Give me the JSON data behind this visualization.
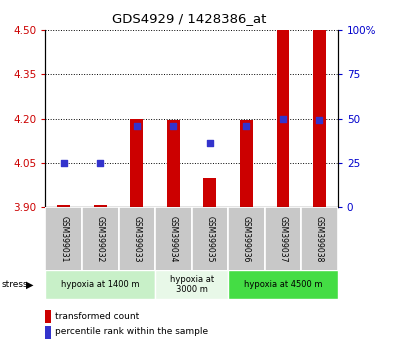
{
  "title": "GDS4929 / 1428386_at",
  "samples": [
    "GSM399031",
    "GSM399032",
    "GSM399033",
    "GSM399034",
    "GSM399035",
    "GSM399036",
    "GSM399037",
    "GSM399038"
  ],
  "bar_bottom": 3.9,
  "bar_tops": [
    3.906,
    3.906,
    4.2,
    4.195,
    4.0,
    4.195,
    4.5,
    4.5
  ],
  "percentile_ranks": [
    25,
    25,
    46,
    46,
    36,
    46,
    50,
    49
  ],
  "ylim_left": [
    3.9,
    4.5
  ],
  "ylim_right": [
    0,
    100
  ],
  "yticks_left": [
    3.9,
    4.05,
    4.2,
    4.35,
    4.5
  ],
  "yticks_right": [
    0,
    25,
    50,
    75,
    100
  ],
  "bar_color": "#cc0000",
  "dot_color": "#3333cc",
  "bar_width": 0.35,
  "groups": [
    {
      "label": "hypoxia at 1400 m",
      "start": 0,
      "end": 3,
      "color": "#c8f0c8"
    },
    {
      "label": "hypoxia at\n3000 m",
      "start": 3,
      "end": 5,
      "color": "#e8f8e8"
    },
    {
      "label": "hypoxia at 4500 m",
      "start": 5,
      "end": 8,
      "color": "#44dd44"
    }
  ],
  "left_label_color": "#cc0000",
  "right_label_color": "#0000cc",
  "grid_color": "#000000",
  "legend_items": [
    "transformed count",
    "percentile rank within the sample"
  ],
  "sample_box_color": "#c8c8c8",
  "fig_bg": "#ffffff"
}
